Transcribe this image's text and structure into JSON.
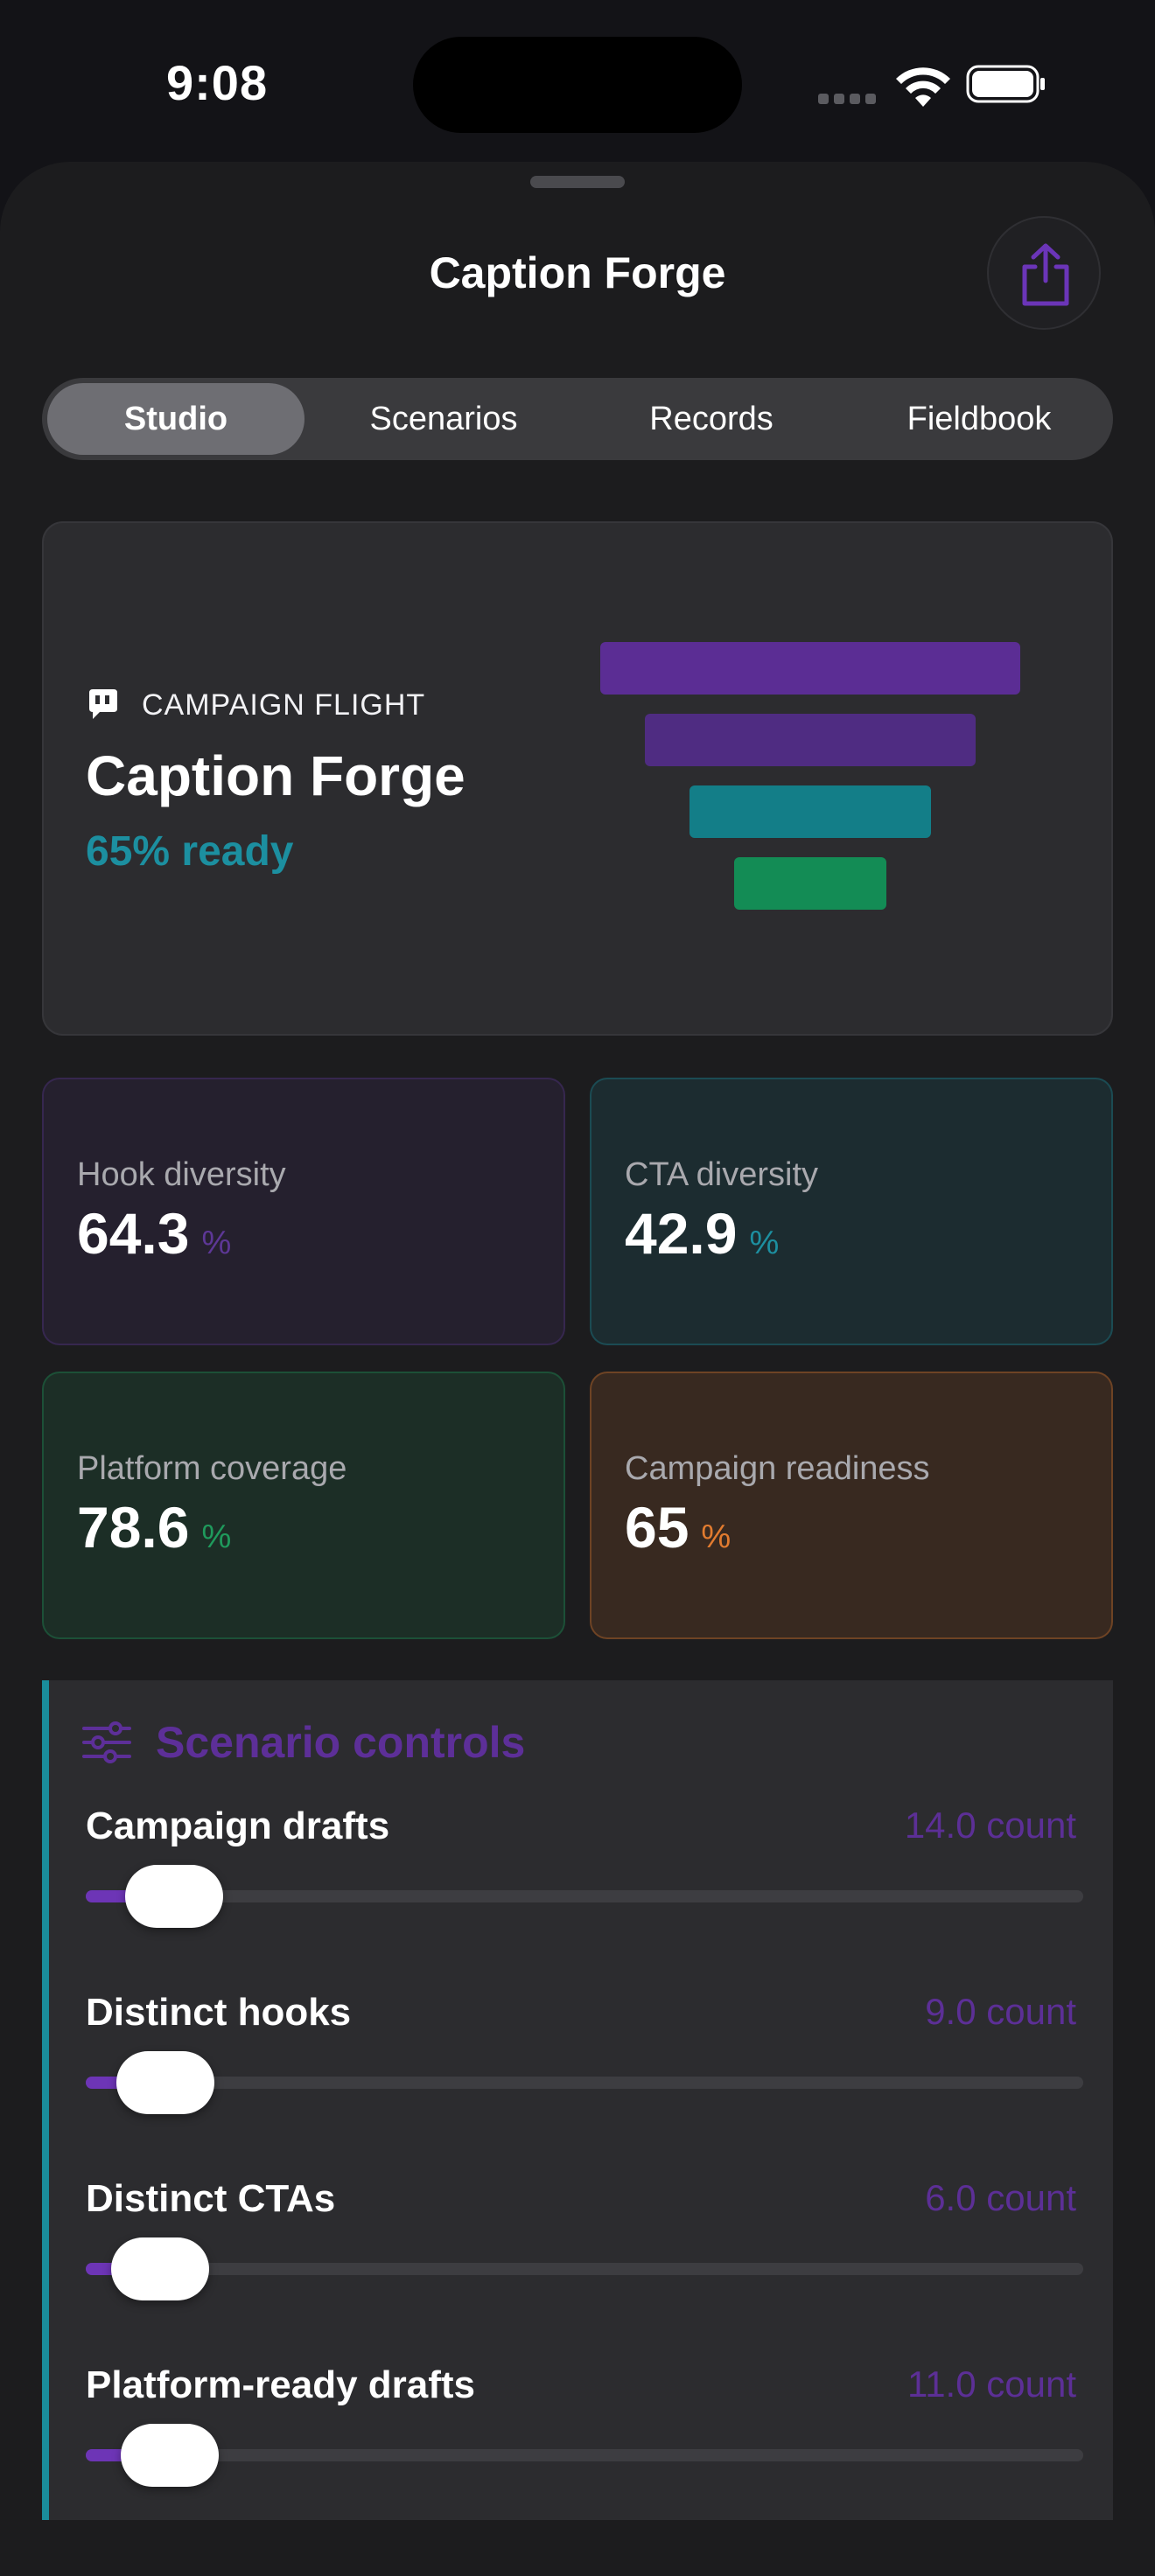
{
  "status": {
    "time": "9:08"
  },
  "sheet": {
    "title": "Caption Forge"
  },
  "tabs": [
    {
      "label": "Studio",
      "active": true
    },
    {
      "label": "Scenarios",
      "active": false
    },
    {
      "label": "Records",
      "active": false
    },
    {
      "label": "Fieldbook",
      "active": false
    }
  ],
  "hero": {
    "eyebrow": "CAMPAIGN FLIGHT",
    "title": "Caption Forge",
    "ready": "65% ready",
    "funnel_colors": [
      "#5b2d94",
      "#4f2c82",
      "#137e88",
      "#138c55"
    ]
  },
  "metrics": [
    {
      "label": "Hook diversity",
      "value": "64.3",
      "unit": "%",
      "accent": "#5d3796"
    },
    {
      "label": "CTA diversity",
      "value": "42.9",
      "unit": "%",
      "accent": "#1d8fa0"
    },
    {
      "label": "Platform coverage",
      "value": "78.6",
      "unit": "%",
      "accent": "#1f9a5c"
    },
    {
      "label": "Campaign readiness",
      "value": "65",
      "unit": "%",
      "accent": "#e27b2f"
    }
  ],
  "controls": {
    "title": "Scenario controls",
    "items": [
      {
        "label": "Campaign drafts",
        "value": "14.0 count",
        "level": 0.03
      },
      {
        "label": "Distinct hooks",
        "value": "9.0 count",
        "level": 0.02
      },
      {
        "label": "Distinct CTAs",
        "value": "6.0 count",
        "level": 0.015
      },
      {
        "label": "Platform-ready drafts",
        "value": "11.0 count",
        "level": 0.025
      }
    ]
  }
}
